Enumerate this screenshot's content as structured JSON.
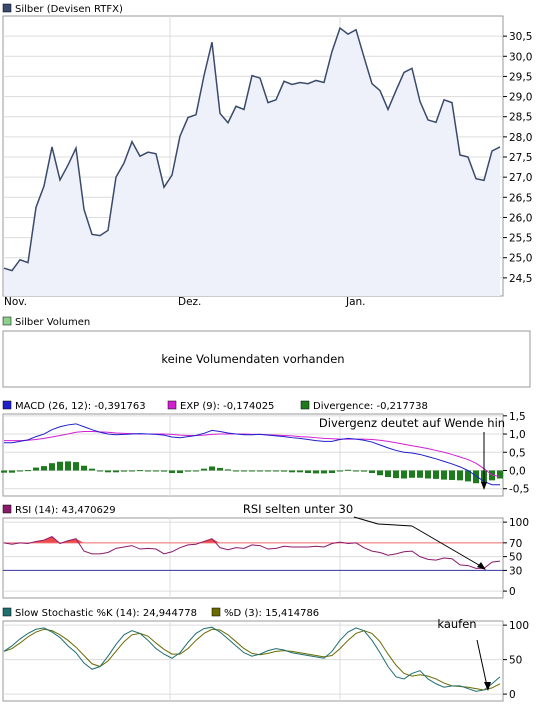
{
  "chart_data": [
    {
      "type": "area",
      "legend": {
        "label": "Silber (Devisen RTFX)",
        "color": "#3b4a6b"
      },
      "x_ticks": [
        "Nov.",
        "Dez.",
        "Jan."
      ],
      "y_ticks": [
        "24,5",
        "25,0",
        "25,5",
        "26,0",
        "26,5",
        "27,0",
        "27,5",
        "28,0",
        "28,5",
        "29,0",
        "29,5",
        "30,0",
        "30,5"
      ],
      "ylim": [
        24.05,
        31.0
      ],
      "grid": true,
      "line_color": "#3b4a6b",
      "fill_color": "#eef1fa",
      "values": [
        24.74,
        24.68,
        24.95,
        24.88,
        26.25,
        26.78,
        27.75,
        26.93,
        27.3,
        27.72,
        26.2,
        25.58,
        25.55,
        25.68,
        27.0,
        27.35,
        27.88,
        27.52,
        27.62,
        27.58,
        26.75,
        27.05,
        28.02,
        28.48,
        28.55,
        29.52,
        30.35,
        28.58,
        28.35,
        28.76,
        28.68,
        29.52,
        29.46,
        28.85,
        28.92,
        29.38,
        29.3,
        29.35,
        29.32,
        29.4,
        29.35,
        30.12,
        30.7,
        30.55,
        30.66,
        29.98,
        29.32,
        29.15,
        28.68,
        29.15,
        29.6,
        29.7,
        28.88,
        28.42,
        28.36,
        28.92,
        28.85,
        27.55,
        27.5,
        26.96,
        26.92,
        27.65,
        27.75
      ]
    },
    {
      "type": "table",
      "legend": {
        "label": "Silber Volumen",
        "color": "#8bd18b"
      },
      "message": "keine Volumendaten vorhanden"
    },
    {
      "type": "line",
      "legend": [
        {
          "label": "MACD (26, 12): -0,391763",
          "color": "#1f1fcf"
        },
        {
          "label": "EXP (9): -0,174025",
          "color": "#d21fd2"
        },
        {
          "label": "Divergence: -0,217738",
          "color": "#1d7a1d"
        }
      ],
      "y_ticks": [
        "-0,5",
        "0,0",
        "0,5",
        "1,0",
        "1,5"
      ],
      "ylim": [
        -0.7,
        1.55
      ],
      "annotation": "Divergenz deutet auf Wende hin",
      "series": [
        {
          "name": "MACD",
          "color": "#1f1fcf",
          "values": [
            0.76,
            0.76,
            0.8,
            0.84,
            0.93,
            1.0,
            1.12,
            1.2,
            1.25,
            1.28,
            1.2,
            1.12,
            1.05,
            1.0,
            0.98,
            0.99,
            1.0,
            1.01,
            1.0,
            0.99,
            0.97,
            0.92,
            0.9,
            0.93,
            0.96,
            1.02,
            1.1,
            1.07,
            1.03,
            1.0,
            0.98,
            0.98,
            0.99,
            0.97,
            0.95,
            0.93,
            0.9,
            0.88,
            0.85,
            0.82,
            0.8,
            0.8,
            0.85,
            0.88,
            0.86,
            0.83,
            0.78,
            0.7,
            0.62,
            0.55,
            0.5,
            0.48,
            0.44,
            0.38,
            0.32,
            0.25,
            0.18,
            0.1,
            0.0,
            -0.15,
            -0.3,
            -0.39,
            -0.39
          ]
        },
        {
          "name": "EXP",
          "color": "#d21fd2",
          "values": [
            0.82,
            0.82,
            0.82,
            0.83,
            0.85,
            0.88,
            0.92,
            0.96,
            1.0,
            1.05,
            1.07,
            1.07,
            1.06,
            1.05,
            1.03,
            1.02,
            1.01,
            1.0,
            1.0,
            1.0,
            1.0,
            0.99,
            0.97,
            0.96,
            0.96,
            0.97,
            0.99,
            1.0,
            1.0,
            1.0,
            1.0,
            0.99,
            0.99,
            0.98,
            0.97,
            0.96,
            0.95,
            0.93,
            0.92,
            0.9,
            0.88,
            0.87,
            0.86,
            0.86,
            0.86,
            0.86,
            0.85,
            0.83,
            0.8,
            0.76,
            0.72,
            0.68,
            0.64,
            0.6,
            0.55,
            0.5,
            0.44,
            0.37,
            0.3,
            0.2,
            0.05,
            -0.12,
            -0.17
          ]
        },
        {
          "name": "Divergence",
          "color": "#1d7a1d",
          "type": "bar",
          "values": [
            -0.06,
            -0.06,
            -0.02,
            0.01,
            0.08,
            0.12,
            0.2,
            0.24,
            0.25,
            0.23,
            0.13,
            0.05,
            -0.01,
            -0.05,
            -0.05,
            -0.03,
            -0.01,
            0.01,
            0.0,
            -0.01,
            -0.03,
            -0.07,
            -0.07,
            -0.03,
            0.0,
            0.05,
            0.11,
            0.07,
            0.03,
            0.0,
            -0.02,
            -0.01,
            0.0,
            -0.01,
            -0.02,
            -0.03,
            -0.05,
            -0.05,
            -0.07,
            -0.08,
            -0.08,
            -0.07,
            -0.01,
            0.02,
            0.0,
            -0.03,
            -0.07,
            -0.13,
            -0.18,
            -0.21,
            -0.22,
            -0.2,
            -0.2,
            -0.22,
            -0.23,
            -0.25,
            -0.26,
            -0.27,
            -0.3,
            -0.35,
            -0.35,
            -0.27,
            -0.22
          ]
        }
      ]
    },
    {
      "type": "line",
      "legend": {
        "label": "RSI (14): 43,470629",
        "color": "#8b1a6b"
      },
      "y_ticks": [
        "0",
        "30",
        "50",
        "70",
        "100"
      ],
      "ylim": [
        -10,
        106
      ],
      "levels": [
        70,
        30
      ],
      "annotation": "RSI selten unter 30",
      "series": [
        {
          "name": "RSI",
          "color": "#8b1a6b",
          "values": [
            70,
            68,
            70,
            69,
            72,
            74,
            79,
            69,
            73,
            76,
            58,
            54,
            54,
            56,
            62,
            64,
            66,
            61,
            62,
            61,
            54,
            57,
            63,
            67,
            68,
            72,
            76,
            63,
            60,
            63,
            62,
            67,
            66,
            61,
            62,
            65,
            64,
            64,
            64,
            65,
            64,
            69,
            71,
            69,
            70,
            63,
            58,
            56,
            52,
            54,
            57,
            58,
            50,
            46,
            45,
            48,
            47,
            38,
            37,
            33,
            33,
            42,
            43.5
          ]
        }
      ]
    },
    {
      "type": "line",
      "legend": [
        {
          "label": "Slow Stochastic %K (14): 24,944778",
          "color": "#1f6f6f"
        },
        {
          "label": "%D (3): 15,414786",
          "color": "#6b6b00"
        }
      ],
      "y_ticks": [
        "0",
        "50",
        "100"
      ],
      "ylim": [
        -10,
        106
      ],
      "annotation": "kaufen",
      "series": [
        {
          "name": "%K",
          "color": "#1f6f6f",
          "values": [
            62,
            70,
            80,
            88,
            94,
            96,
            90,
            82,
            70,
            60,
            45,
            36,
            40,
            55,
            72,
            86,
            92,
            88,
            78,
            66,
            58,
            52,
            60,
            75,
            88,
            95,
            97,
            90,
            80,
            70,
            60,
            55,
            58,
            63,
            66,
            64,
            60,
            58,
            56,
            54,
            52,
            62,
            78,
            90,
            96,
            92,
            78,
            60,
            40,
            25,
            22,
            30,
            34,
            22,
            15,
            10,
            12,
            12,
            8,
            4,
            6,
            15,
            25
          ]
        },
        {
          "name": "%D",
          "color": "#6b6b00",
          "values": [
            62,
            66,
            74,
            83,
            90,
            94,
            92,
            86,
            78,
            68,
            56,
            44,
            40,
            48,
            62,
            76,
            86,
            88,
            84,
            74,
            65,
            58,
            58,
            66,
            78,
            88,
            94,
            93,
            86,
            76,
            66,
            59,
            57,
            59,
            62,
            63,
            62,
            60,
            58,
            56,
            54,
            56,
            66,
            78,
            88,
            92,
            88,
            76,
            58,
            42,
            30,
            26,
            28,
            26,
            22,
            16,
            12,
            11,
            10,
            8,
            6,
            9,
            15
          ]
        }
      ]
    }
  ]
}
